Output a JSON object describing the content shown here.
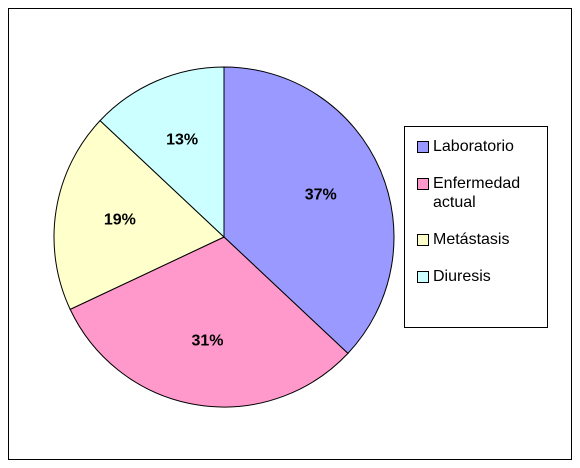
{
  "chart_data": {
    "type": "pie",
    "categories": [
      "Laboratorio",
      "Enfermedad actual",
      "Metástasis",
      "Diuresis"
    ],
    "values": [
      37,
      31,
      19,
      13
    ],
    "value_labels": [
      "37%",
      "31%",
      "19%",
      "13%"
    ],
    "colors": [
      "#9999ff",
      "#ff99cc",
      "#ffffcc",
      "#ccffff"
    ],
    "legend": "right"
  }
}
